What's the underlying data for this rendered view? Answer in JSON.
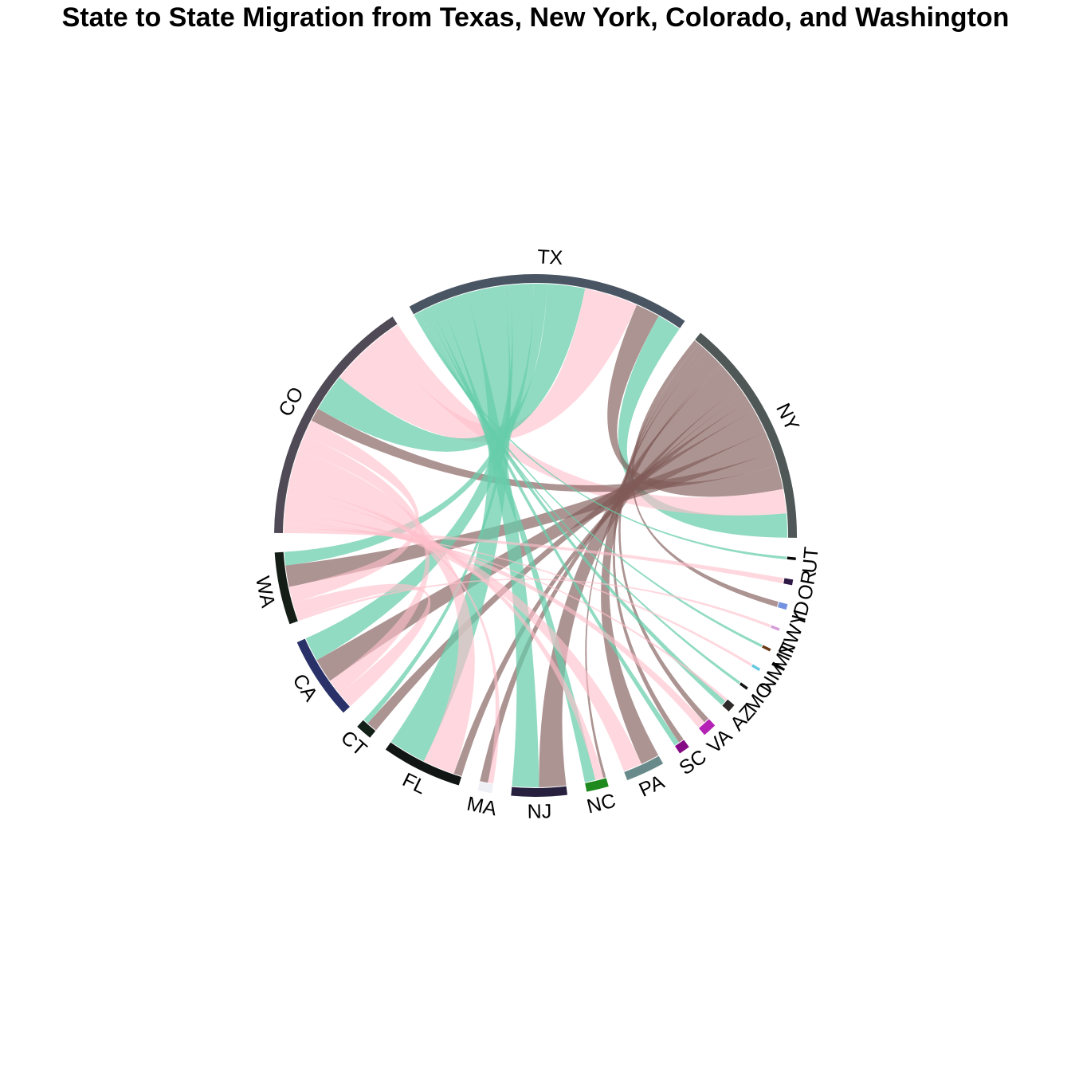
{
  "chart_data": {
    "type": "chord",
    "title": "State to State Migration from Texas, New York, Colorado, and Washington",
    "origin_colors": {
      "TX": "#66CDAA",
      "NY": "#7F5A58",
      "CO": "#FFC0CB",
      "WA": "#FFC0CB"
    },
    "sectors": [
      {
        "name": "NY",
        "color": "#4F5757"
      },
      {
        "name": "TX",
        "color": "#4A5563"
      },
      {
        "name": "CO",
        "color": "#4F4A55"
      },
      {
        "name": "WA",
        "color": "#151D17"
      },
      {
        "name": "CA",
        "color": "#2A3168"
      },
      {
        "name": "CT",
        "color": "#132018"
      },
      {
        "name": "FL",
        "color": "#111614"
      },
      {
        "name": "MA",
        "color": "#EEF0F6"
      },
      {
        "name": "NJ",
        "color": "#27203E"
      },
      {
        "name": "NC",
        "color": "#1E8A1E"
      },
      {
        "name": "PA",
        "color": "#698A8A"
      },
      {
        "name": "SC",
        "color": "#850A85"
      },
      {
        "name": "VA",
        "color": "#B421B4"
      },
      {
        "name": "AZ",
        "color": "#2E2A2A"
      },
      {
        "name": "MO",
        "color": "#141414"
      },
      {
        "name": "NM",
        "color": "#66C8E0"
      },
      {
        "name": "MT",
        "color": "#6B3A17"
      },
      {
        "name": "NWY",
        "color": "#D59ED8"
      },
      {
        "name": "ID",
        "color": "#7592E0"
      },
      {
        "name": "OR",
        "color": "#2E1845"
      },
      {
        "name": "UT",
        "color": "#050505"
      }
    ],
    "flows": [
      {
        "from": "TX",
        "to": "NY",
        "value": 9
      },
      {
        "from": "CO",
        "to": "NY",
        "value": 9
      },
      {
        "from": "NY",
        "to": "TX",
        "value": 9
      },
      {
        "from": "CO",
        "to": "TX",
        "value": 20
      },
      {
        "from": "TX",
        "to": "CO",
        "value": 14
      },
      {
        "from": "NY",
        "to": "CO",
        "value": 5
      },
      {
        "from": "TX",
        "to": "WA",
        "value": 5
      },
      {
        "from": "NY",
        "to": "WA",
        "value": 8
      },
      {
        "from": "CO",
        "to": "WA",
        "value": 6
      },
      {
        "from": "TX",
        "to": "CA",
        "value": 9
      },
      {
        "from": "NY",
        "to": "CA",
        "value": 9
      },
      {
        "from": "CO",
        "to": "CA",
        "value": 6
      },
      {
        "from": "WA",
        "to": "CA",
        "value": 6
      },
      {
        "from": "TX",
        "to": "CT",
        "value": 2
      },
      {
        "from": "NY",
        "to": "CT",
        "value": 4
      },
      {
        "from": "TX",
        "to": "FL",
        "value": 14
      },
      {
        "from": "CO",
        "to": "FL",
        "value": 12
      },
      {
        "from": "NY",
        "to": "FL",
        "value": 3
      },
      {
        "from": "NY",
        "to": "MA",
        "value": 3
      },
      {
        "from": "CO",
        "to": "MA",
        "value": 2
      },
      {
        "from": "TX",
        "to": "NJ",
        "value": 10
      },
      {
        "from": "NY",
        "to": "NJ",
        "value": 10
      },
      {
        "from": "TX",
        "to": "NC",
        "value": 4
      },
      {
        "from": "CO",
        "to": "NC",
        "value": 3
      },
      {
        "from": "NY",
        "to": "NC",
        "value": 1
      },
      {
        "from": "CO",
        "to": "PA",
        "value": 7
      },
      {
        "from": "NY",
        "to": "PA",
        "value": 7
      },
      {
        "from": "TX",
        "to": "SC",
        "value": 2
      },
      {
        "from": "NY",
        "to": "SC",
        "value": 2
      },
      {
        "from": "CO",
        "to": "VA",
        "value": 3
      },
      {
        "from": "NY",
        "to": "VA",
        "value": 2
      },
      {
        "from": "TX",
        "to": "AZ",
        "value": 2
      },
      {
        "from": "CO",
        "to": "AZ",
        "value": 1
      },
      {
        "from": "TX",
        "to": "MO",
        "value": 1
      },
      {
        "from": "CO",
        "to": "NM",
        "value": 1
      },
      {
        "from": "TX",
        "to": "MT",
        "value": 1
      },
      {
        "from": "WA",
        "to": "NWY",
        "value": 1
      },
      {
        "from": "NY",
        "to": "ID",
        "value": 2
      },
      {
        "from": "CO",
        "to": "OR",
        "value": 2
      },
      {
        "from": "TX",
        "to": "UT",
        "value": 1
      }
    ]
  }
}
